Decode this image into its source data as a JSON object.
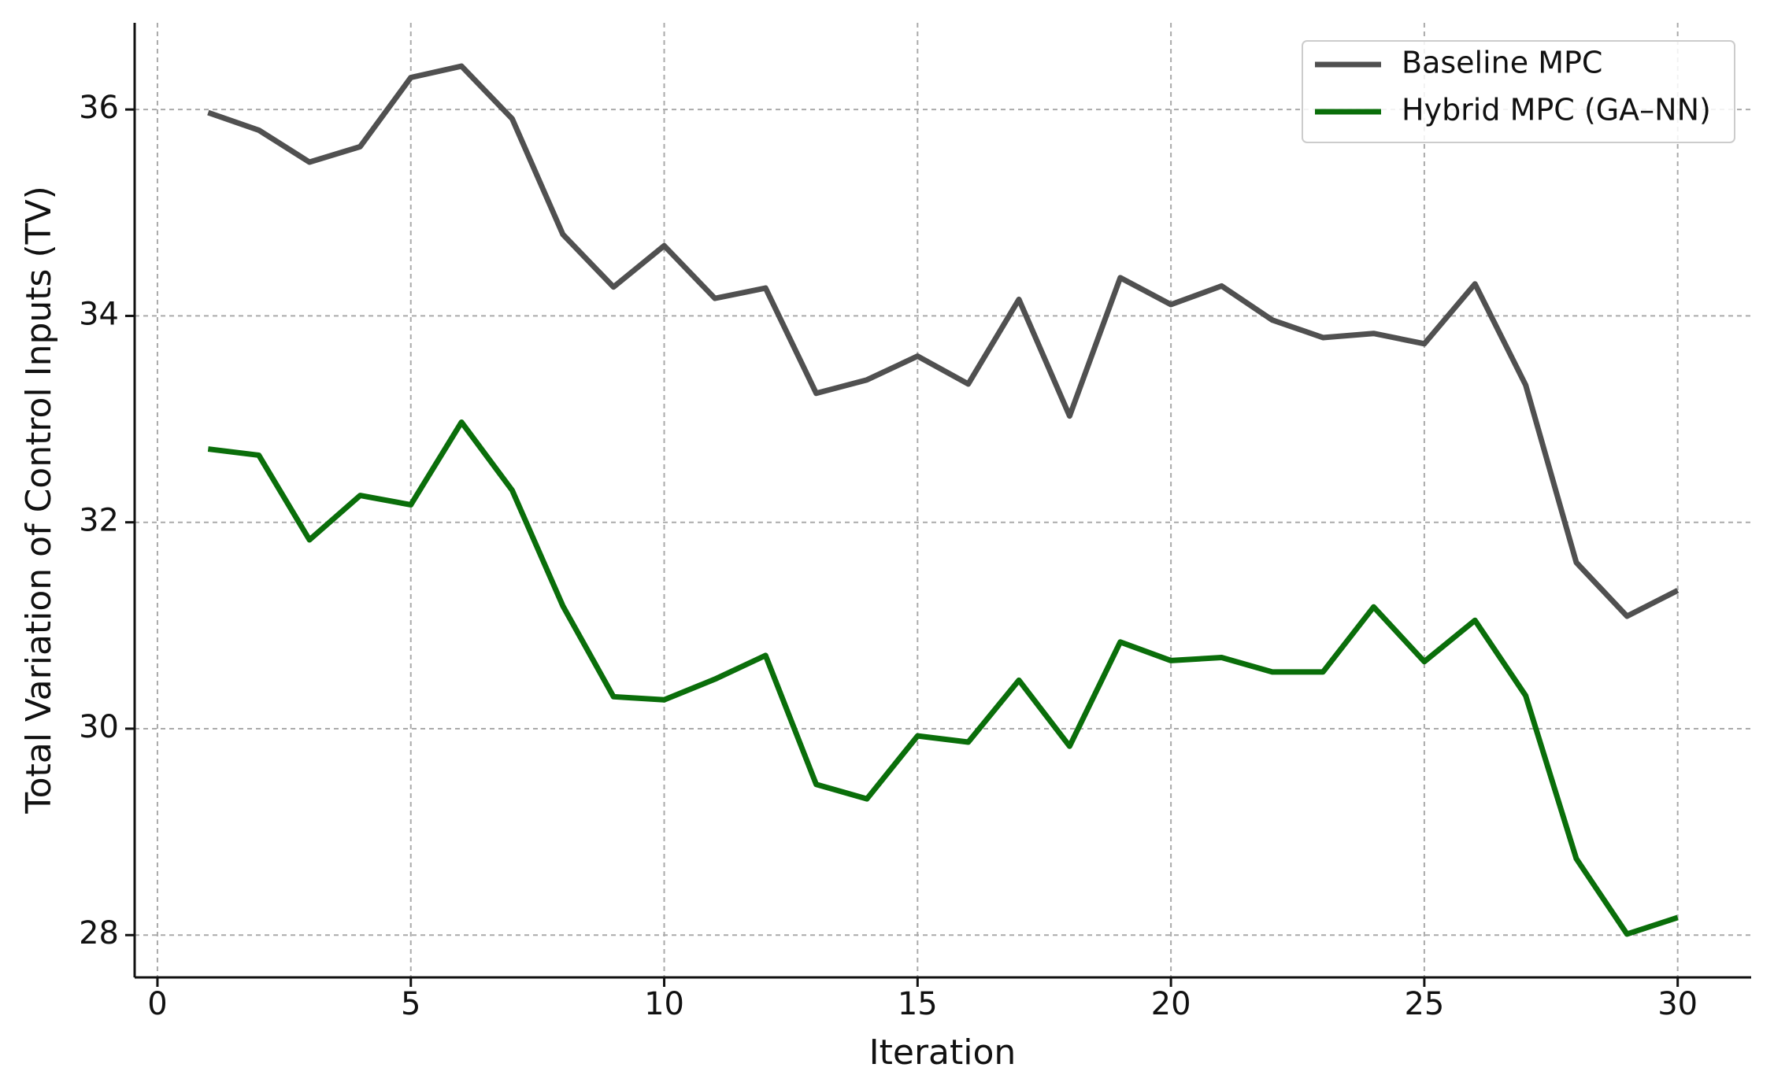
{
  "chart_data": {
    "type": "line",
    "xlabel": "Iteration",
    "ylabel": "Total Variation of Control Inputs (TV)",
    "x": [
      1,
      2,
      3,
      4,
      5,
      6,
      7,
      8,
      9,
      10,
      11,
      12,
      13,
      14,
      15,
      16,
      17,
      18,
      19,
      20,
      21,
      22,
      23,
      24,
      25,
      26,
      27,
      28,
      29,
      30
    ],
    "series": [
      {
        "name": "Baseline MPC",
        "color": "#505050",
        "values": [
          35.97,
          35.8,
          35.49,
          35.64,
          36.31,
          36.42,
          35.91,
          34.79,
          34.28,
          34.68,
          34.17,
          34.27,
          33.25,
          33.38,
          33.61,
          33.34,
          34.16,
          33.03,
          34.37,
          34.11,
          34.29,
          33.96,
          33.79,
          33.83,
          33.73,
          34.31,
          33.33,
          31.61,
          31.09,
          31.34
        ]
      },
      {
        "name": "Hybrid MPC (GA–NN)",
        "color": "#0a6e0a",
        "values": [
          32.71,
          32.65,
          31.83,
          32.26,
          32.17,
          32.97,
          32.31,
          31.19,
          30.31,
          30.28,
          30.48,
          30.71,
          29.46,
          29.32,
          29.93,
          29.87,
          30.47,
          29.83,
          30.84,
          30.66,
          30.69,
          30.55,
          30.55,
          31.18,
          30.65,
          31.05,
          30.32,
          28.74,
          28.01,
          28.17
        ]
      }
    ],
    "xlim": [
      -0.45,
      31.45
    ],
    "ylim": [
      27.59,
      36.84
    ],
    "xticks": [
      0,
      5,
      10,
      15,
      20,
      25,
      30
    ],
    "yticks": [
      28,
      30,
      32,
      34,
      36
    ],
    "grid": true,
    "legend": "upper right"
  }
}
